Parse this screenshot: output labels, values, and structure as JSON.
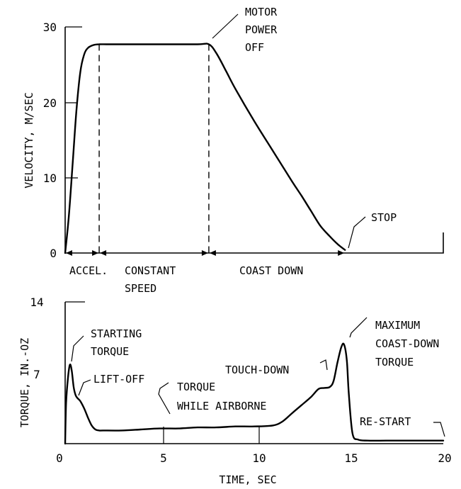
{
  "chart_data": [
    {
      "type": "line",
      "ylabel": "VELOCITY, M/SEC",
      "ylim": [
        0,
        30
      ],
      "xlim": [
        0,
        20
      ],
      "y_ticks": [
        "0",
        "10",
        "20",
        "30"
      ],
      "series": [
        {
          "x": [
            0,
            0.2,
            0.4,
            0.6,
            0.8,
            1.0,
            1.2,
            1.5,
            1.8,
            2.2,
            3,
            5,
            7,
            7.6,
            8.0,
            8.5,
            9,
            10,
            11,
            12,
            12.5,
            13,
            13.5,
            14,
            14.4,
            14.8
          ],
          "y": [
            0,
            5,
            12,
            19,
            24,
            26.3,
            27.2,
            27.6,
            27.7,
            27.7,
            27.7,
            27.7,
            27.7,
            27.7,
            26.5,
            24.2,
            21.8,
            17.5,
            13.5,
            9.5,
            7.6,
            5.6,
            3.6,
            2.2,
            1.2,
            0.4
          ]
        }
      ],
      "phases": [
        {
          "label": "ACCEL.",
          "x_start": 0,
          "x_end": 1.8
        },
        {
          "label": "CONSTANT",
          "label2": "SPEED",
          "x_start": 1.8,
          "x_end": 7.6
        },
        {
          "label": "COAST DOWN",
          "x_start": 7.6,
          "x_end": 14.8
        }
      ],
      "annotations": [
        {
          "line1": "MOTOR",
          "line2": "POWER",
          "line3": "OFF",
          "x": 7.6,
          "y": 27.7
        },
        {
          "text": "STOP",
          "x": 14.8,
          "y": 0
        }
      ]
    },
    {
      "type": "line",
      "xlabel": "TIME, SEC",
      "ylabel": "TORQUE, IN.-OZ",
      "xlim": [
        0,
        20
      ],
      "ylim": [
        0,
        14
      ],
      "x_ticks": [
        "0",
        "5",
        "10",
        "15",
        "20"
      ],
      "y_ticks": [
        "7",
        "14"
      ],
      "series": [
        {
          "x": [
            0,
            0.05,
            0.15,
            0.25,
            0.35,
            0.45,
            0.55,
            0.65,
            0.8,
            1.0,
            1.2,
            1.4,
            1.6,
            1.8,
            2,
            3,
            4,
            5,
            6,
            7,
            8,
            9,
            10,
            11,
            11.5,
            12,
            12.5,
            13,
            13.4,
            13.7,
            14,
            14.2,
            14.4,
            14.6,
            14.75,
            14.9,
            15.0,
            15.2,
            15.5,
            16,
            17,
            18,
            19,
            20
          ],
          "y": [
            0,
            4,
            6.5,
            7.8,
            7.2,
            5.6,
            4.8,
            4.5,
            4.2,
            3.5,
            2.6,
            1.8,
            1.4,
            1.3,
            1.3,
            1.3,
            1.4,
            1.5,
            1.5,
            1.6,
            1.6,
            1.7,
            1.7,
            1.8,
            2.2,
            3.0,
            3.8,
            4.6,
            5.4,
            5.5,
            5.6,
            6.2,
            8.0,
            9.5,
            9.8,
            8.2,
            5,
            1.0,
            0.4,
            0.3,
            0.3,
            0.3,
            0.3,
            0.3
          ]
        }
      ],
      "annotations": [
        {
          "line1": "STARTING",
          "line2": "TORQUE",
          "x": 0.25,
          "y": 7.8
        },
        {
          "text": "LIFT-OFF",
          "x": 0.7,
          "y": 4.4
        },
        {
          "line1": "TORQUE",
          "line2": "WHILE AIRBORNE",
          "x": 5.5,
          "y": 1.5
        },
        {
          "text": "TOUCH-DOWN",
          "x": 13.5,
          "y": 5.5
        },
        {
          "line1": "MAXIMUM",
          "line2": "COAST-DOWN",
          "line3": "TORQUE",
          "x": 14.75,
          "y": 9.8
        },
        {
          "text": "RE-START",
          "x": 20,
          "y": 0.3
        }
      ]
    }
  ]
}
